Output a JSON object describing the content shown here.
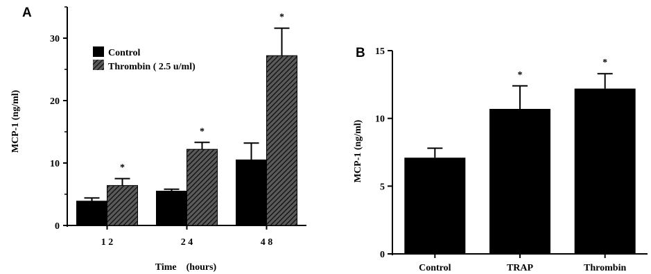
{
  "chart_data": [
    {
      "panel": "A",
      "type": "bar",
      "categories": [
        "1 2",
        "2 4",
        "4 8"
      ],
      "xlabel": "Time    (hours)",
      "ylabel": "MCP-1    (ng/ml)",
      "ylim": [
        0,
        30
      ],
      "yticks": [
        "0",
        "10",
        "20",
        "30"
      ],
      "series": [
        {
          "name": "Control",
          "values": [
            3.9,
            5.5,
            10.5
          ],
          "errors": [
            0.5,
            0.3,
            2.7
          ],
          "pattern": "solid",
          "color": "#000000"
        },
        {
          "name": "Thrombin ( 2.5 u/ml)",
          "values": [
            6.4,
            12.2,
            27.2
          ],
          "errors": [
            1.1,
            1.1,
            4.4
          ],
          "pattern": "hatched",
          "color": "#1a1a1a"
        }
      ],
      "significance": [
        {
          "category": "1 2",
          "series": "Thrombin ( 2.5 u/ml)",
          "mark": "*"
        },
        {
          "category": "2 4",
          "series": "Thrombin ( 2.5 u/ml)",
          "mark": "*"
        },
        {
          "category": "4 8",
          "series": "Thrombin ( 2.5 u/ml)",
          "mark": "*"
        }
      ],
      "legend_position": "upper-left",
      "grid": false
    },
    {
      "panel": "B",
      "type": "bar",
      "categories": [
        "Control",
        "TRAP",
        "Thrombin"
      ],
      "ylabel": "MCP-1    (ng/ml)",
      "ylim": [
        0,
        15
      ],
      "yticks": [
        "0",
        "5",
        "10",
        "15"
      ],
      "values": [
        7.1,
        10.7,
        12.2
      ],
      "errors": [
        0.7,
        1.7,
        1.1
      ],
      "significance": [
        {
          "category": "TRAP",
          "mark": "*"
        },
        {
          "category": "Thrombin",
          "mark": "*"
        }
      ],
      "grid": false
    }
  ]
}
